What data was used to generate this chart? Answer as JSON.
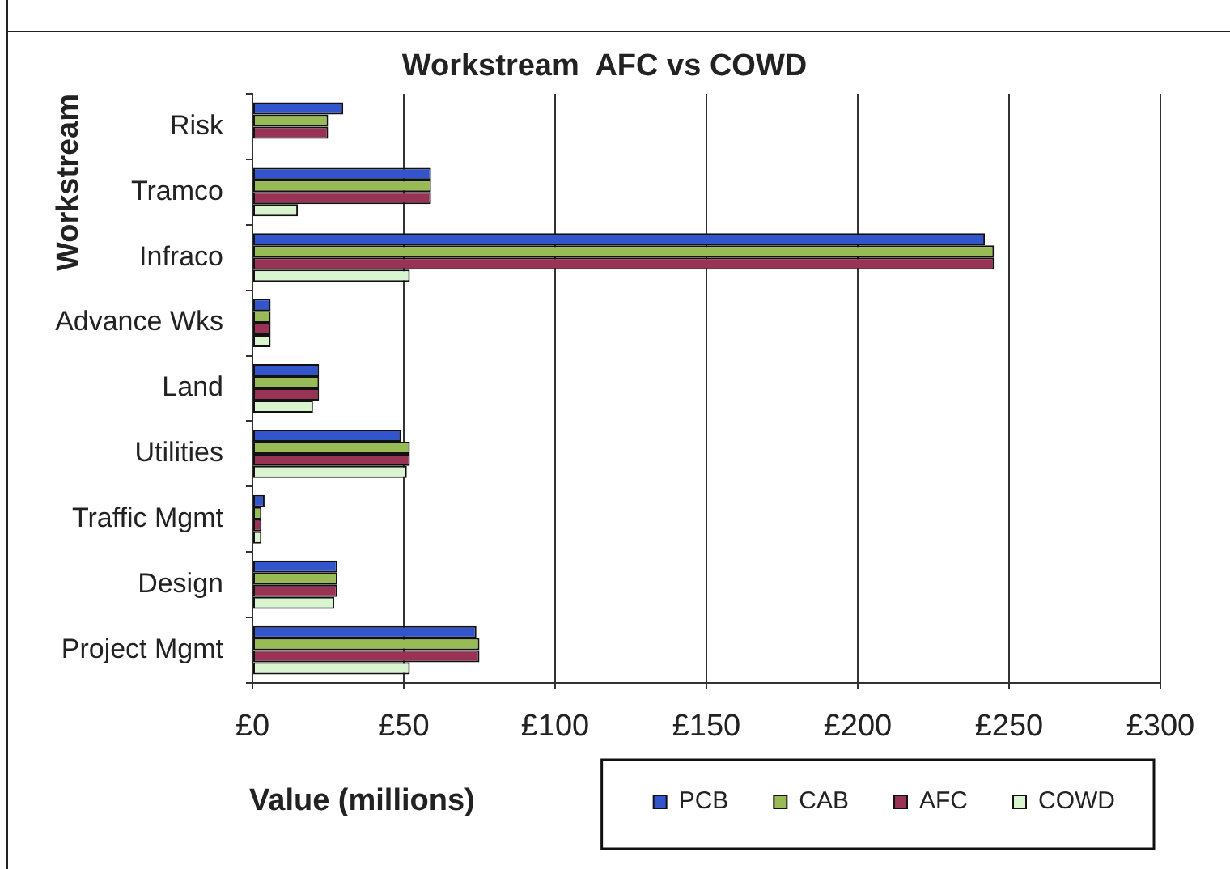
{
  "chart_data": {
    "type": "bar",
    "orientation": "horizontal",
    "title": "Workstream  AFC vs COWD",
    "xlabel": "Value (millions)",
    "ylabel": "Workstream",
    "categories": [
      "Risk",
      "Tramco",
      "Infraco",
      "Advance Wks",
      "Land",
      "Utilities",
      "Traffic Mgmt",
      "Design",
      "Project Mgmt"
    ],
    "series": [
      {
        "name": "PCB",
        "color": "#3355cc",
        "values": [
          30,
          59,
          242,
          6,
          22,
          49,
          4,
          28,
          74
        ]
      },
      {
        "name": "CAB",
        "color": "#99bb55",
        "values": [
          25,
          59,
          245,
          6,
          22,
          52,
          3,
          28,
          75
        ]
      },
      {
        "name": "AFC",
        "color": "#993355",
        "values": [
          25,
          59,
          245,
          6,
          22,
          52,
          3,
          28,
          75
        ]
      },
      {
        "name": "COWD",
        "color": "#d8f5d0",
        "values": [
          null,
          15,
          52,
          6,
          20,
          51,
          3,
          27,
          52
        ]
      }
    ],
    "xlim": [
      0,
      300
    ],
    "xticks": [
      {
        "value": 0,
        "label": "£0"
      },
      {
        "value": 50,
        "label": "£50"
      },
      {
        "value": 100,
        "label": "£100"
      },
      {
        "value": 150,
        "label": "£150"
      },
      {
        "value": 200,
        "label": "£200"
      },
      {
        "value": 250,
        "label": "£250"
      },
      {
        "value": 300,
        "label": "£300"
      }
    ],
    "grid": "x",
    "legend": "bottom right"
  }
}
